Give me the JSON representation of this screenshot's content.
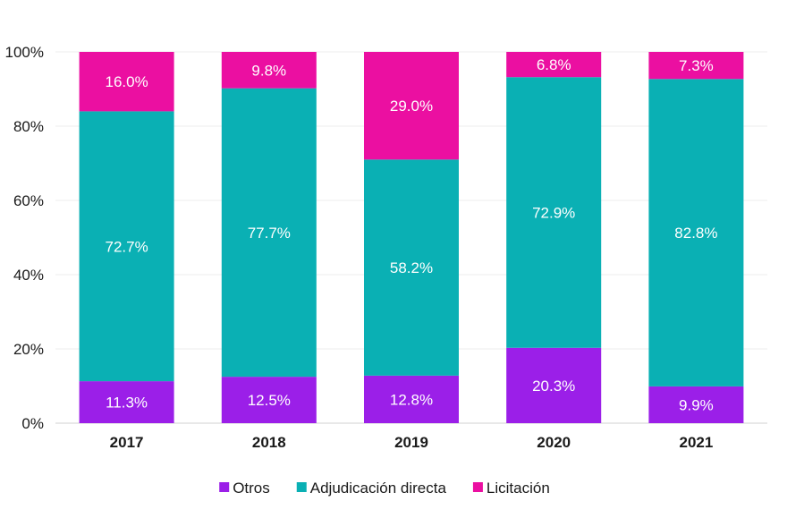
{
  "chart_data": {
    "type": "bar",
    "stacked": true,
    "percent": true,
    "categories": [
      "2017",
      "2018",
      "2019",
      "2020",
      "2021"
    ],
    "series": [
      {
        "name": "Otros",
        "color": "#9b1fe8",
        "values": [
          11.3,
          12.5,
          12.8,
          20.3,
          9.9
        ],
        "labels": [
          "11.3%",
          "12.5%",
          "12.8%",
          "20.3%",
          "9.9%"
        ]
      },
      {
        "name": "Adjudicación directa",
        "color": "#0ab0b4",
        "values": [
          72.7,
          77.7,
          58.2,
          72.9,
          82.8
        ],
        "labels": [
          "72.7%",
          "77.7%",
          "58.2%",
          "72.9%",
          "82.8%"
        ]
      },
      {
        "name": "Licitación",
        "color": "#eb0fa1",
        "values": [
          16.0,
          9.8,
          29.0,
          6.8,
          7.3
        ],
        "labels": [
          "16.0%",
          "9.8%",
          "29.0%",
          "6.8%",
          "7.3%"
        ]
      }
    ],
    "y_ticks": [
      "0%",
      "20%",
      "40%",
      "60%",
      "80%",
      "100%"
    ],
    "ylim": [
      0,
      100
    ],
    "grid": true,
    "legend_position": "bottom"
  }
}
